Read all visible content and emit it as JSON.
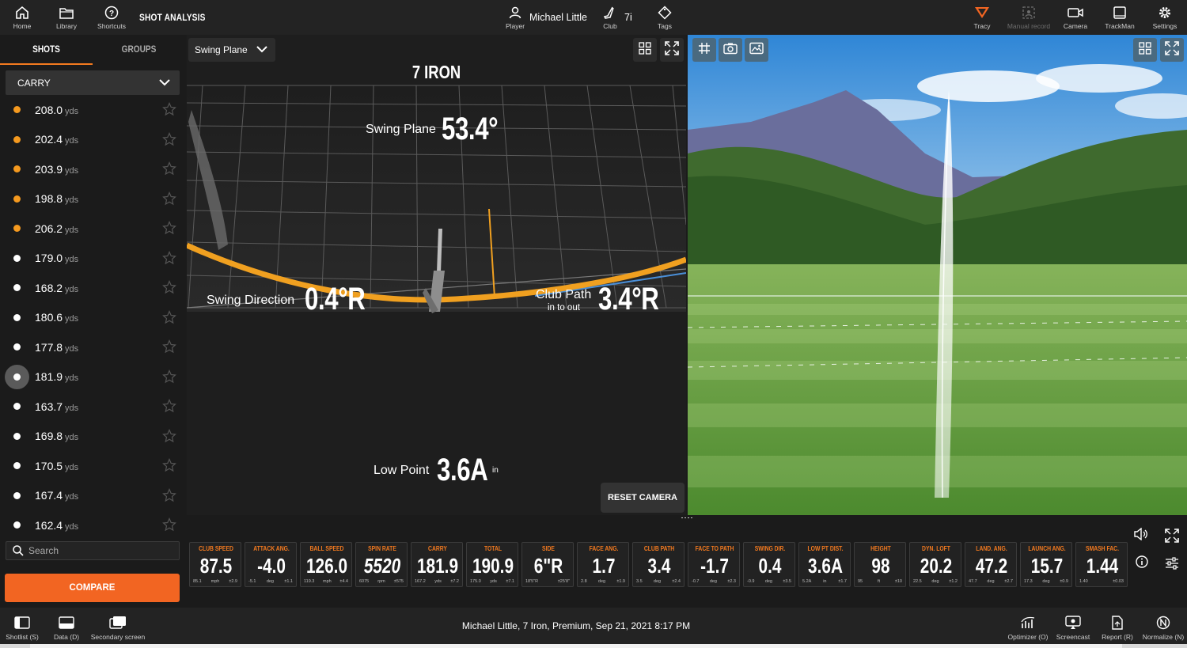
{
  "topbar": {
    "home": "Home",
    "library": "Library",
    "shortcuts": "Shortcuts",
    "title": "SHOT ANALYSIS",
    "player_label": "Player",
    "player_name": "Michael Little",
    "club_label": "Club",
    "club_value": "7i",
    "tags": "Tags",
    "tracy": "Tracy",
    "manual_record": "Manual record",
    "camera": "Camera",
    "trackman": "TrackMan",
    "settings": "Settings"
  },
  "sidebar": {
    "tab_shots": "SHOTS",
    "tab_groups": "GROUPS",
    "metric": "CARRY",
    "unit": "yds",
    "shots": [
      {
        "value": "208.0",
        "color": "orange"
      },
      {
        "value": "202.4",
        "color": "orange"
      },
      {
        "value": "203.9",
        "color": "orange"
      },
      {
        "value": "198.8",
        "color": "orange"
      },
      {
        "value": "206.2",
        "color": "orange"
      },
      {
        "value": "179.0",
        "color": "white"
      },
      {
        "value": "168.2",
        "color": "white"
      },
      {
        "value": "180.6",
        "color": "white"
      },
      {
        "value": "177.8",
        "color": "white"
      },
      {
        "value": "181.9",
        "color": "white",
        "selected": true
      },
      {
        "value": "163.7",
        "color": "white"
      },
      {
        "value": "169.8",
        "color": "white"
      },
      {
        "value": "170.5",
        "color": "white"
      },
      {
        "value": "167.4",
        "color": "white"
      },
      {
        "value": "162.4",
        "color": "white"
      }
    ],
    "search_placeholder": "Search",
    "compare": "COMPARE"
  },
  "center": {
    "view": "Swing Plane",
    "club_title": "7 IRON",
    "swing_plane_label": "Swing Plane",
    "swing_plane_value": "53.4°",
    "swing_direction_label": "Swing Direction",
    "swing_direction_value": "0.4°R",
    "club_path_label": "Club Path",
    "club_path_value": "3.4°R",
    "club_path_sub": "in to out",
    "low_point_label": "Low Point",
    "low_point_value": "3.6A",
    "low_point_unit": "in",
    "reset_camera": "RESET CAMERA"
  },
  "tiles": [
    {
      "label": "CLUB SPEED",
      "value": "87.5",
      "f1": "85.1",
      "f2": "mph",
      "f3": "±2.9"
    },
    {
      "label": "ATTACK ANG.",
      "value": "-4.0",
      "f1": "-5.1",
      "f2": "deg",
      "f3": "±1.1"
    },
    {
      "label": "BALL SPEED",
      "value": "126.0",
      "f1": "119.3",
      "f2": "mph",
      "f3": "±4.4"
    },
    {
      "label": "SPIN RATE",
      "value": "5520",
      "f1": "6075",
      "f2": "rpm",
      "f3": "±575",
      "italic": true
    },
    {
      "label": "CARRY",
      "value": "181.9",
      "f1": "167.2",
      "f2": "yds",
      "f3": "±7.2"
    },
    {
      "label": "TOTAL",
      "value": "190.9",
      "f1": "175.0",
      "f2": "yds",
      "f3": "±7.1"
    },
    {
      "label": "SIDE",
      "value": "6\"R",
      "f1": "18'5\"R",
      "f2": "",
      "f3": "±25'8\""
    },
    {
      "label": "FACE ANG.",
      "value": "1.7",
      "f1": "2.8",
      "f2": "deg",
      "f3": "±1.9"
    },
    {
      "label": "CLUB PATH",
      "value": "3.4",
      "f1": "3.5",
      "f2": "deg",
      "f3": "±2.4"
    },
    {
      "label": "FACE TO PATH",
      "value": "-1.7",
      "f1": "-0.7",
      "f2": "deg",
      "f3": "±2.3"
    },
    {
      "label": "SWING DIR.",
      "value": "0.4",
      "f1": "-0.9",
      "f2": "deg",
      "f3": "±3.5"
    },
    {
      "label": "LOW PT DIST.",
      "value": "3.6A",
      "f1": "5.2A",
      "f2": "in",
      "f3": "±1.7"
    },
    {
      "label": "HEIGHT",
      "value": "98",
      "f1": "95",
      "f2": "ft",
      "f3": "±10"
    },
    {
      "label": "DYN. LOFT",
      "value": "20.2",
      "f1": "22.5",
      "f2": "deg",
      "f3": "±1.2"
    },
    {
      "label": "LAND. ANG.",
      "value": "47.2",
      "f1": "47.7",
      "f2": "deg",
      "f3": "±2.7"
    },
    {
      "label": "LAUNCH ANG.",
      "value": "15.7",
      "f1": "17.3",
      "f2": "deg",
      "f3": "±0.9"
    },
    {
      "label": "SMASH FAC.",
      "value": "1.44",
      "f1": "1.40",
      "f2": "",
      "f3": "±0.03"
    }
  ],
  "bottombar": {
    "shotlist": "Shotlist (S)",
    "data": "Data (D)",
    "secondary": "Secondary screen",
    "session": "Michael Little, 7 Iron, Premium, Sep 21, 2021 8:17 PM",
    "optimizer": "Optimizer (O)",
    "screencast": "Screencast",
    "report": "Report (R)",
    "normalize": "Normalize (N)"
  },
  "colors": {
    "accent": "#f26522",
    "orange_dot": "#f59a1f",
    "tile_label": "#f47a1f"
  }
}
